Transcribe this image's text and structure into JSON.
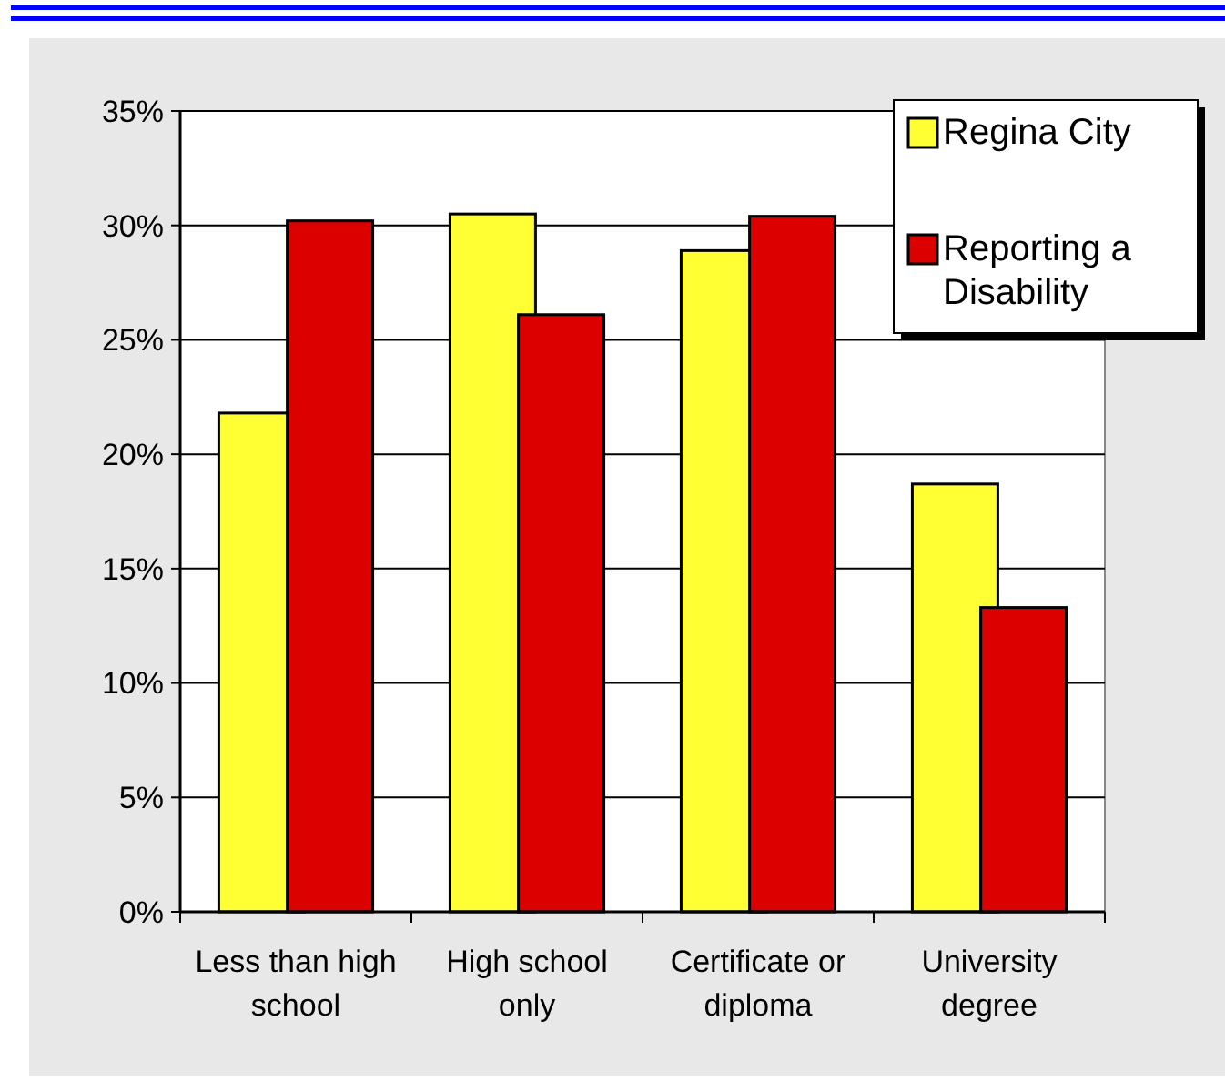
{
  "chart_data": {
    "type": "bar",
    "categories": [
      "Less than high school",
      "High school only",
      "Certificate or diploma",
      "University degree"
    ],
    "series": [
      {
        "name": "Regina City",
        "color": "#ffff33",
        "values": [
          21.8,
          30.5,
          28.9,
          18.7
        ]
      },
      {
        "name": "Reporting a Disability",
        "color": "#dd0000",
        "values": [
          30.2,
          26.1,
          30.4,
          13.3
        ]
      }
    ],
    "ylim": [
      0,
      35
    ],
    "yticks": [
      {
        "value": 0,
        "label": "0%"
      },
      {
        "value": 5,
        "label": "5%"
      },
      {
        "value": 10,
        "label": "10%"
      },
      {
        "value": 15,
        "label": "15%"
      },
      {
        "value": 20,
        "label": "20%"
      },
      {
        "value": 25,
        "label": "25%"
      },
      {
        "value": 30,
        "label": "30%"
      },
      {
        "value": 35,
        "label": "35%"
      }
    ],
    "grid": "y",
    "legend": "top right"
  }
}
